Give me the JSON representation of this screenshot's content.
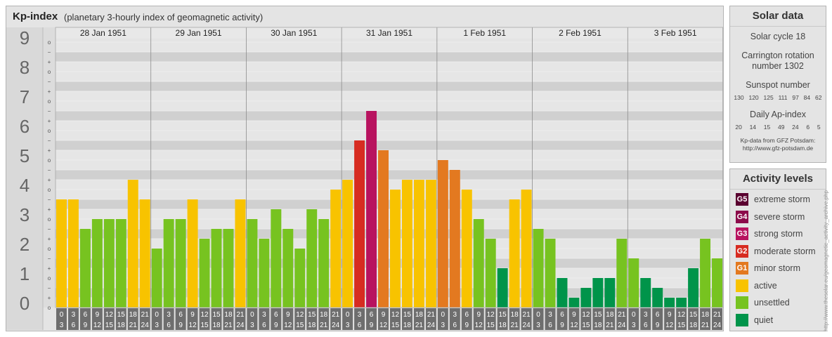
{
  "header": {
    "title": "Kp-index",
    "subtitle": "(planetary 3-hourly index of geomagnetic activity)"
  },
  "colors": {
    "quiet": "#00944a",
    "unsettled": "#77c320",
    "active": "#f8c300",
    "minor": "#e37920",
    "moderate": "#d72c21",
    "strong": "#b8135f",
    "severe": "#8c0b4a",
    "extreme": "#5a0030"
  },
  "chart_data": {
    "type": "bar",
    "title": "Kp-index",
    "ylim": [
      0,
      9
    ],
    "y_ticks": [
      "0",
      "1",
      "2",
      "3",
      "4",
      "5",
      "6",
      "7",
      "8",
      "9"
    ],
    "subticks": [
      "o",
      "+",
      "−",
      "o"
    ],
    "days": [
      "28 Jan 1951",
      "29 Jan 1951",
      "30 Jan 1951",
      "31 Jan 1951",
      "1 Feb 1951",
      "2 Feb 1951",
      "3 Feb 1951"
    ],
    "intervals": [
      [
        "0",
        "3"
      ],
      [
        "3",
        "6"
      ],
      [
        "6",
        "9"
      ],
      [
        "9",
        "12"
      ],
      [
        "12",
        "15"
      ],
      [
        "15",
        "18"
      ],
      [
        "18",
        "21"
      ],
      [
        "21",
        "24"
      ]
    ],
    "values": [
      [
        3.667,
        3.667,
        2.667,
        3.0,
        3.0,
        3.0,
        4.333,
        3.667
      ],
      [
        2.0,
        3.0,
        3.0,
        3.667,
        2.333,
        2.667,
        2.667,
        3.667
      ],
      [
        3.0,
        2.333,
        3.333,
        2.667,
        2.0,
        3.333,
        3.0,
        4.0
      ],
      [
        4.333,
        5.667,
        6.667,
        5.333,
        4.0,
        4.333,
        4.333,
        4.333
      ],
      [
        5.0,
        4.667,
        4.0,
        3.0,
        2.333,
        1.333,
        3.667,
        4.0
      ],
      [
        2.667,
        2.333,
        1.0,
        0.333,
        0.667,
        1.0,
        1.0,
        2.333
      ],
      [
        1.667,
        1.0,
        0.667,
        0.333,
        0.333,
        1.333,
        2.333,
        1.667
      ]
    ]
  },
  "solar": {
    "title": "Solar data",
    "cycle": "Solar cycle 18",
    "carrington": "Carrington rotation number 1302",
    "sunspot_label": "Sunspot number",
    "sunspot_values": [
      "130",
      "120",
      "125",
      "111",
      "97",
      "84",
      "62"
    ],
    "ap_label": "Daily Ap-index",
    "ap_values": [
      "20",
      "14",
      "15",
      "49",
      "24",
      "6",
      "5"
    ],
    "source_line1": "Kp-data from GFZ Potsdam:",
    "source_line2": "http://www.gfz-potsdam.de"
  },
  "activity": {
    "title": "Activity levels",
    "levels": [
      {
        "badge": "G5",
        "label": "extreme storm",
        "color": "#5a0030"
      },
      {
        "badge": "G4",
        "label": "severe storm",
        "color": "#8c0b4a"
      },
      {
        "badge": "G3",
        "label": "strong storm",
        "color": "#b8135f"
      },
      {
        "badge": "G2",
        "label": "moderate storm",
        "color": "#d72c21"
      },
      {
        "badge": "G1",
        "label": "minor storm",
        "color": "#e37920"
      },
      {
        "badge": "",
        "label": "active",
        "color": "#f8c300"
      },
      {
        "badge": "",
        "label": "unsettled",
        "color": "#77c320"
      },
      {
        "badge": "",
        "label": "quiet",
        "color": "#00944a"
      }
    ]
  },
  "credit": "http://www.thesolar.eu/geomagnetic_activity_archive.php"
}
